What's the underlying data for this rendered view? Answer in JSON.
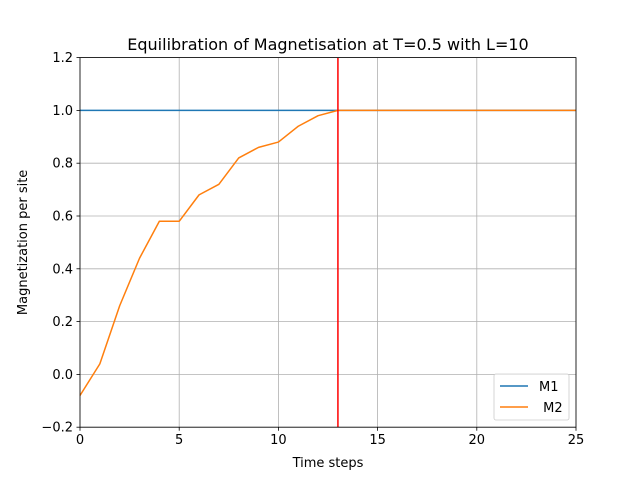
{
  "chart_data": {
    "type": "line",
    "title": "Equilibration of Magnetisation at T=0.5 with L=10",
    "xlabel": "Time steps",
    "ylabel": "Magnetization per site",
    "xlim": [
      0,
      25
    ],
    "ylim": [
      -0.2,
      1.2
    ],
    "xticks": [
      0,
      5,
      10,
      15,
      20,
      25
    ],
    "xtick_labels": [
      "0",
      "5",
      "10",
      "15",
      "20",
      "25"
    ],
    "yticks": [
      -0.2,
      0.0,
      0.2,
      0.4,
      0.6,
      0.8,
      1.0,
      1.2
    ],
    "ytick_labels": [
      "−0.2",
      "0.0",
      "0.2",
      "0.4",
      "0.6",
      "0.8",
      "1.0",
      "1.2"
    ],
    "grid": true,
    "legend_position": "lower-right",
    "series": [
      {
        "name": "M1",
        "color": "#1f77b4",
        "x": [
          0,
          25
        ],
        "y": [
          1.0,
          1.0
        ]
      },
      {
        "name": " M2",
        "color": "#ff7f0e",
        "x": [
          0,
          1,
          2,
          3,
          4,
          5,
          6,
          7,
          8,
          9,
          10,
          11,
          12,
          13,
          14,
          15,
          16,
          17,
          18,
          19,
          20,
          21,
          22,
          23,
          24,
          25
        ],
        "y": [
          -0.08,
          0.04,
          0.26,
          0.44,
          0.58,
          0.58,
          0.68,
          0.72,
          0.82,
          0.86,
          0.88,
          0.94,
          0.98,
          1.0,
          1.0,
          1.0,
          1.0,
          1.0,
          1.0,
          1.0,
          1.0,
          1.0,
          1.0,
          1.0,
          1.0,
          1.0
        ]
      }
    ],
    "vline": {
      "x": 13,
      "color": "#ff0000"
    }
  }
}
